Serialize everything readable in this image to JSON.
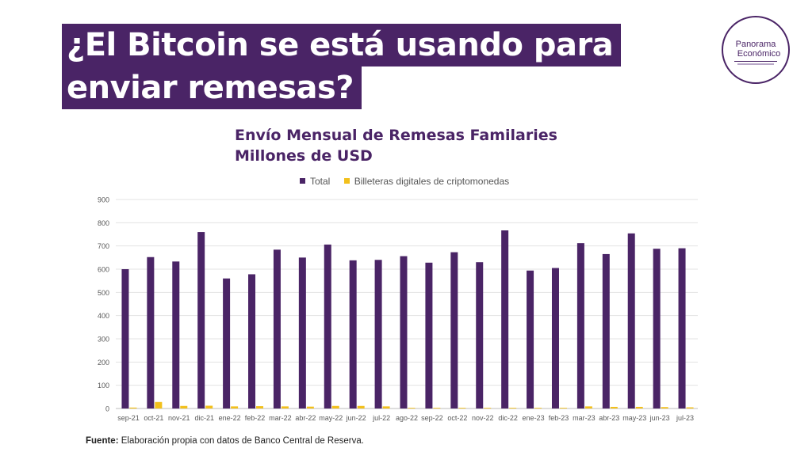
{
  "header": {
    "title_line_1": "¿El Bitcoin se está usando para",
    "title_line_2": "enviar remesas?"
  },
  "logo": {
    "line1": "Panorama",
    "line2": "Económico"
  },
  "source": {
    "label": "Fuente:",
    "text": " Elaboración propia con datos de Banco Central de Reserva."
  },
  "colors": {
    "total": "#4a2466",
    "crypto": "#f2c01c",
    "title_bg": "#4a2466",
    "grid": "#e3e3e3"
  },
  "chart_data": {
    "type": "bar",
    "title_line_1": "Envío Mensual de Remesas Familaries",
    "title_line_2": "Millones de USD",
    "ylim": [
      0,
      900
    ],
    "yticks": [
      "0",
      "100",
      "200",
      "300",
      "400",
      "500",
      "600",
      "700",
      "800",
      "900"
    ],
    "categories": [
      "sep-21",
      "oct-21",
      "nov-21",
      "dic-21",
      "ene-22",
      "feb-22",
      "mar-22",
      "abr-22",
      "may-22",
      "jun-22",
      "jul-22",
      "ago-22",
      "sep-22",
      "oct-22",
      "nov-22",
      "dic-22",
      "ene-23",
      "feb-23",
      "mar-23",
      "abr-23",
      "may-23",
      "jun-23",
      "jul-23"
    ],
    "series": [
      {
        "name": "Total",
        "values": [
          600,
          652,
          633,
          760,
          560,
          578,
          684,
          650,
          706,
          638,
          640,
          656,
          628,
          673,
          630,
          767,
          594,
          605,
          712,
          665,
          754,
          688,
          690
        ]
      },
      {
        "name": "Billeteras digitales de criptomonedas",
        "values": [
          4,
          28,
          11,
          12,
          9,
          10,
          9,
          8,
          11,
          11,
          9,
          3,
          3,
          3,
          3,
          3,
          3,
          3,
          9,
          7,
          7,
          6,
          5
        ]
      }
    ]
  }
}
